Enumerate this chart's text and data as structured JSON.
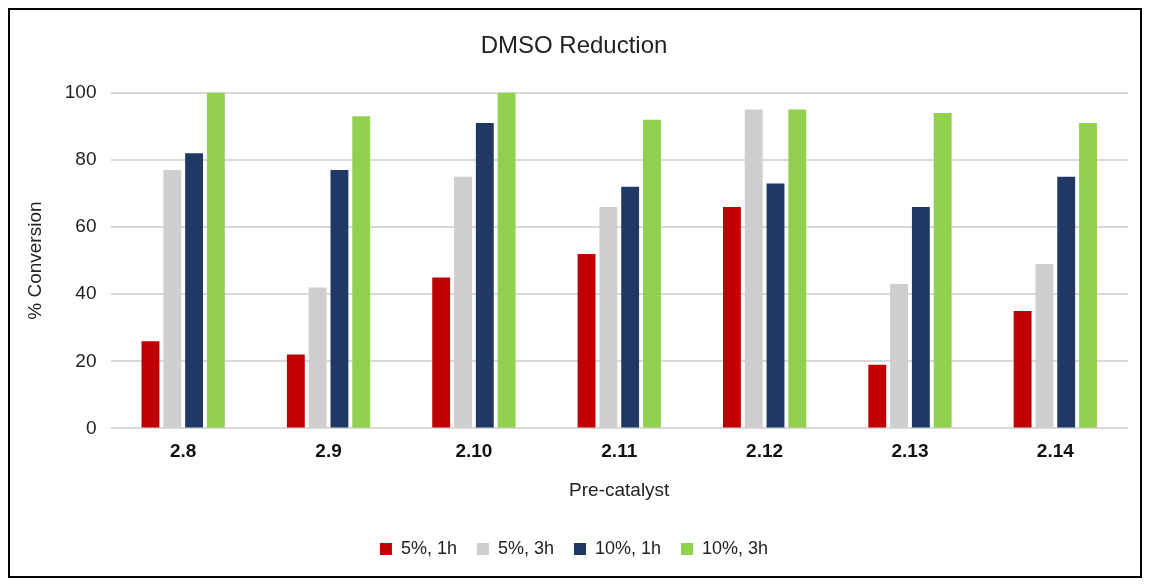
{
  "chart_data": {
    "type": "bar",
    "title": "DMSO Reduction",
    "xlabel": "Pre-catalyst",
    "ylabel": "% Conversion",
    "categories": [
      "2.8",
      "2.9",
      "2.10",
      "2.11",
      "2.12",
      "2.13",
      "2.14"
    ],
    "series": [
      {
        "name": "5%, 1h",
        "color": "#c00000",
        "values": [
          26,
          22,
          45,
          52,
          66,
          19,
          35
        ]
      },
      {
        "name": "5%, 3h",
        "color": "#d0cece",
        "values": [
          77,
          42,
          75,
          66,
          95,
          43,
          49
        ]
      },
      {
        "name": "10%, 1h",
        "color": "#203864",
        "values": [
          82,
          77,
          91,
          72,
          73,
          66,
          75
        ]
      },
      {
        "name": "10%, 3h",
        "color": "#92d050",
        "values": [
          100,
          93,
          100,
          92,
          95,
          94,
          91
        ]
      }
    ],
    "ylim": [
      0,
      100
    ],
    "yticks": [
      0,
      20,
      40,
      60,
      80,
      100
    ],
    "grid": "y",
    "legend": "bottom"
  }
}
